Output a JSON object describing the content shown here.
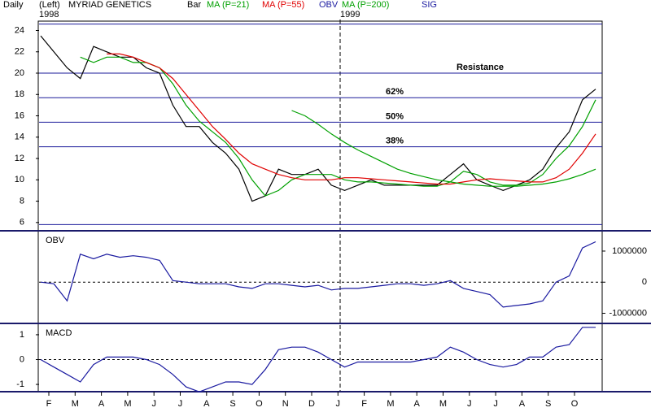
{
  "header": {
    "period": "Daily",
    "side": "(Left)",
    "year": "1998",
    "symbol": "MYRIAD GENETICS",
    "sig": "SIG",
    "next_year": "1999"
  },
  "months": [
    "F",
    "M",
    "A",
    "M",
    "J",
    "J",
    "A",
    "S",
    "O",
    "N",
    "D",
    "J",
    "F",
    "M",
    "A",
    "M",
    "J",
    "J",
    "A",
    "S",
    "O"
  ],
  "chart_data": [
    {
      "type": "line",
      "series": [
        {
          "name": "Bar",
          "color": "#000000",
          "values": [
            23.5,
            22,
            20.5,
            19.5,
            22.5,
            22,
            21.5,
            21.5,
            20.5,
            20,
            17,
            15,
            15,
            13.5,
            12.5,
            11,
            8,
            8.5,
            11,
            10.5,
            10.5,
            11,
            9.5,
            9,
            9.5,
            10,
            9.5,
            9.5,
            9.5,
            9.5,
            9.5,
            10.5,
            11.5,
            10,
            9.5,
            9,
            9.5,
            10,
            11,
            13,
            14.5,
            17.5,
            18.5
          ]
        },
        {
          "name": "MA (P=21)",
          "color": "#00a000",
          "values": [
            null,
            null,
            null,
            21.5,
            21,
            21.5,
            21.5,
            21,
            21,
            20.5,
            19,
            17,
            15.5,
            14.5,
            13.5,
            12,
            10,
            8.5,
            9,
            10,
            10.5,
            10.5,
            10.5,
            10,
            9.8,
            9.8,
            9.7,
            9.6,
            9.5,
            9.4,
            9.4,
            9.8,
            10.8,
            10.5,
            9.8,
            9.5,
            9.5,
            9.7,
            10.5,
            12,
            13.2,
            15,
            17.5
          ]
        },
        {
          "name": "MA (P=55)",
          "color": "#e00000",
          "values": [
            null,
            null,
            null,
            null,
            null,
            21.8,
            21.8,
            21.5,
            21,
            20.5,
            19.5,
            18,
            16.5,
            15,
            13.8,
            12.5,
            11.5,
            11,
            10.5,
            10.2,
            10,
            10,
            10,
            10.2,
            10.2,
            10.1,
            10,
            9.9,
            9.8,
            9.7,
            9.6,
            9.6,
            9.8,
            10,
            10.1,
            10,
            9.9,
            9.8,
            9.8,
            10.2,
            11,
            12.5,
            14.3
          ]
        },
        {
          "name": "MA (P=200)",
          "color": "#00a000",
          "values": [
            null,
            null,
            null,
            null,
            null,
            null,
            null,
            null,
            null,
            null,
            null,
            null,
            null,
            null,
            null,
            null,
            null,
            null,
            null,
            16.5,
            16,
            15.2,
            14.3,
            13.5,
            12.8,
            12.2,
            11.6,
            11,
            10.6,
            10.3,
            10,
            9.8,
            9.6,
            9.5,
            9.4,
            9.4,
            9.4,
            9.5,
            9.6,
            9.8,
            10.1,
            10.5,
            11
          ]
        }
      ],
      "ylim": [
        5.3,
        24.8
      ],
      "yticks": [
        6,
        8,
        10,
        12,
        14,
        16,
        18,
        20,
        22,
        24
      ],
      "levels": [
        24.6,
        20,
        17.7,
        15.4,
        13.1,
        5.8
      ],
      "level_labels": [
        null,
        "Resistance",
        "62%",
        "50%",
        "38%",
        null
      ],
      "level_color": "#1a1a9a"
    },
    {
      "type": "line",
      "title": "OBV",
      "series": [
        {
          "name": "OBV",
          "color": "#1a1aa0",
          "values": [
            0,
            -50000,
            -600000,
            900000,
            750000,
            900000,
            800000,
            850000,
            800000,
            700000,
            50000,
            0,
            -50000,
            -50000,
            -50000,
            -150000,
            -200000,
            -50000,
            -50000,
            -100000,
            -150000,
            -100000,
            -250000,
            -200000,
            -200000,
            -150000,
            -100000,
            -50000,
            -50000,
            -100000,
            -50000,
            50000,
            -200000,
            -300000,
            -400000,
            -800000,
            -750000,
            -700000,
            -600000,
            0,
            200000,
            1100000,
            1300000
          ]
        }
      ],
      "ylim": [
        -1300000,
        1600000
      ],
      "yticks": [
        1000000,
        0,
        -1000000
      ],
      "yaxis": "right",
      "zero_line": true
    },
    {
      "type": "line",
      "title": "MACD",
      "series": [
        {
          "color": "#1a1aa0",
          "values": [
            0,
            -0.3,
            -0.6,
            -0.9,
            -0.2,
            0.1,
            0.1,
            0.1,
            0,
            -0.2,
            -0.6,
            -1.1,
            -1.3,
            -1.1,
            -0.9,
            -0.9,
            -1.0,
            -0.4,
            0.4,
            0.5,
            0.5,
            0.3,
            0,
            -0.3,
            -0.1,
            -0.1,
            -0.1,
            -0.1,
            -0.1,
            0,
            0.1,
            0.5,
            0.3,
            0,
            -0.2,
            -0.3,
            -0.2,
            0.1,
            0.1,
            0.5,
            0.6,
            1.3,
            1.3
          ]
        }
      ],
      "ylim": [
        -1.26,
        1.39
      ],
      "yticks": [
        1,
        0,
        -1
      ],
      "yaxis": "left",
      "zero_line": true
    }
  ]
}
